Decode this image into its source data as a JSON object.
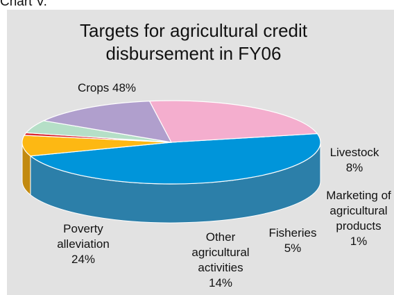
{
  "caption": "Chart V.",
  "colors": {
    "panel_bg": "#E2E2E2",
    "caption_text": "#1E5BA8",
    "top_cap": "#C8C8C8"
  },
  "chart_data": {
    "type": "pie",
    "title_lines": [
      "Targets for agricultural credit",
      "disbursement in FY06"
    ],
    "slices": [
      {
        "key": "crops",
        "value": 48,
        "label_lines": [
          "Crops 48%"
        ],
        "color": "#0095DA",
        "side_color": "#2C7FA9"
      },
      {
        "key": "livestock",
        "value": 8,
        "label_lines": [
          "Livestock",
          "8%"
        ],
        "color": "#FDB813",
        "side_color": "#C28A10"
      },
      {
        "key": "marketing",
        "value": 1,
        "label_lines": [
          "Marketing of",
          "agricultural",
          "products",
          "1%"
        ],
        "color": "#D8262F",
        "side_color": "#9A1B22"
      },
      {
        "key": "fisheries",
        "value": 5,
        "label_lines": [
          "Fisheries",
          "5%"
        ],
        "color": "#B5DFC7",
        "side_color": "#849E8B"
      },
      {
        "key": "other",
        "value": 14,
        "label_lines": [
          "Other",
          "agricultural",
          "activities",
          "14%"
        ],
        "color": "#B09FCD",
        "side_color": "#7B6C92"
      },
      {
        "key": "poverty",
        "value": 24,
        "label_lines": [
          "Poverty",
          "alleviation",
          "24%"
        ],
        "color": "#F4AECE",
        "side_color": "#B27F8F"
      }
    ]
  }
}
